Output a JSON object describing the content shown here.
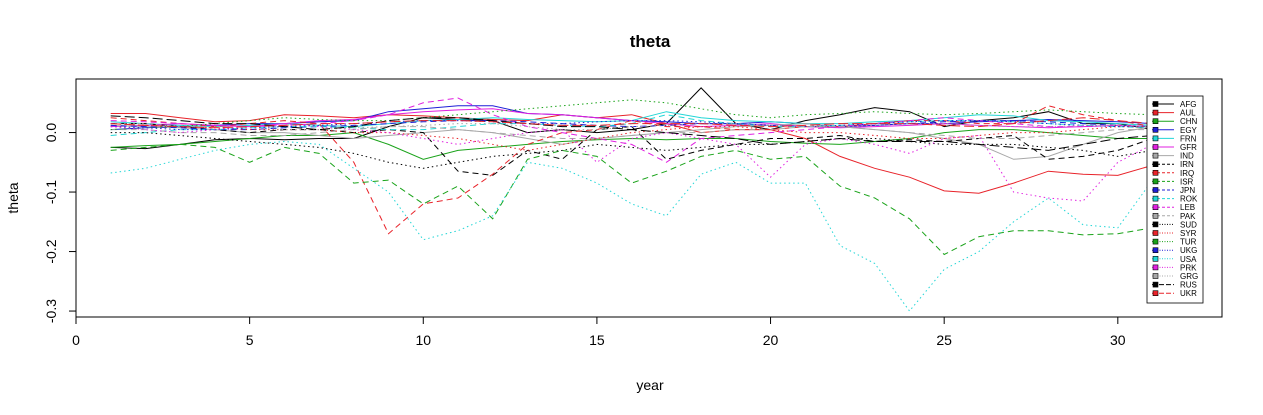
{
  "chart_data": {
    "type": "line",
    "title": "theta",
    "xlabel": "year",
    "ylabel": "theta",
    "xlim": [
      0,
      33
    ],
    "ylim": [
      -0.31,
      0.09
    ],
    "xticks": [
      0,
      5,
      10,
      15,
      20,
      25,
      30
    ],
    "yticks": [
      0.0,
      -0.1,
      -0.2,
      -0.3
    ],
    "ytick_labels": [
      "0.0",
      "-0.1",
      "-0.2",
      "-0.3"
    ],
    "grid": false,
    "legend_position": "right",
    "x": [
      1,
      2,
      3,
      4,
      5,
      6,
      7,
      8,
      9,
      10,
      11,
      12,
      13,
      14,
      15,
      16,
      17,
      18,
      19,
      20,
      21,
      22,
      23,
      24,
      25,
      26,
      27,
      28,
      29,
      30,
      31
    ],
    "series": [
      {
        "name": "AFG",
        "color": "#000000",
        "dash": "solid",
        "values": [
          -0.025,
          -0.027,
          -0.02,
          -0.012,
          -0.01,
          -0.012,
          -0.01,
          -0.01,
          0.01,
          0.025,
          0.022,
          0.02,
          0.0,
          0.005,
          0.0,
          0.005,
          0.015,
          0.075,
          0.015,
          0.005,
          0.02,
          0.03,
          0.042,
          0.035,
          0.01,
          0.02,
          0.025,
          0.035,
          0.015,
          0.015,
          0.005
        ]
      },
      {
        "name": "AUL",
        "color": "#e8232a",
        "dash": "solid",
        "values": [
          0.032,
          0.032,
          0.025,
          0.018,
          0.02,
          0.03,
          0.028,
          0.025,
          0.03,
          0.028,
          0.025,
          0.022,
          0.02,
          0.03,
          0.025,
          0.03,
          0.015,
          0.0,
          0.005,
          0.005,
          -0.01,
          -0.04,
          -0.06,
          -0.075,
          -0.098,
          -0.102,
          -0.085,
          -0.065,
          -0.07,
          -0.072,
          -0.055
        ]
      },
      {
        "name": "CHN",
        "color": "#1aa31a",
        "dash": "solid",
        "values": [
          -0.025,
          -0.022,
          -0.02,
          -0.015,
          -0.01,
          -0.005,
          -0.005,
          0.0,
          -0.02,
          -0.045,
          -0.03,
          -0.025,
          -0.02,
          -0.015,
          -0.012,
          -0.01,
          -0.012,
          -0.01,
          -0.01,
          -0.015,
          -0.018,
          -0.02,
          -0.015,
          -0.01,
          0.0,
          0.005,
          0.005,
          0.0,
          -0.005,
          -0.01,
          -0.01
        ]
      },
      {
        "name": "EGY",
        "color": "#1f1fd6",
        "dash": "solid",
        "values": [
          0.005,
          0.008,
          0.01,
          0.012,
          0.015,
          0.015,
          0.018,
          0.02,
          0.035,
          0.04,
          0.045,
          0.045,
          0.032,
          0.03,
          0.025,
          0.02,
          0.018,
          0.015,
          0.015,
          0.018,
          0.015,
          0.01,
          0.012,
          0.015,
          0.015,
          0.018,
          0.02,
          0.022,
          0.02,
          0.018,
          0.015
        ]
      },
      {
        "name": "FRN",
        "color": "#22d6d6",
        "dash": "solid",
        "values": [
          0.018,
          0.015,
          0.012,
          0.01,
          0.012,
          0.015,
          0.012,
          0.01,
          0.015,
          0.02,
          0.022,
          0.025,
          0.022,
          0.02,
          0.018,
          0.02,
          0.035,
          0.025,
          0.02,
          0.018,
          0.015,
          0.015,
          0.018,
          0.02,
          0.025,
          0.03,
          0.028,
          0.02,
          0.018,
          0.015,
          0.012
        ]
      },
      {
        "name": "GFR",
        "color": "#e020e0",
        "dash": "solid",
        "values": [
          0.01,
          0.012,
          0.015,
          0.012,
          0.01,
          0.015,
          0.02,
          0.022,
          0.03,
          0.035,
          0.038,
          0.04,
          0.032,
          0.03,
          0.025,
          0.02,
          0.015,
          0.01,
          0.012,
          0.015,
          0.01,
          0.008,
          0.01,
          0.012,
          0.015,
          0.012,
          0.01,
          0.008,
          0.01,
          0.012,
          0.01
        ]
      },
      {
        "name": "IND",
        "color": "#a8a8a8",
        "dash": "solid",
        "values": [
          0.012,
          0.01,
          0.008,
          0.005,
          0.0,
          0.0,
          -0.005,
          -0.01,
          -0.005,
          0.0,
          0.005,
          0.0,
          -0.01,
          -0.02,
          -0.01,
          -0.005,
          0.0,
          0.005,
          0.01,
          0.012,
          0.015,
          0.01,
          0.005,
          0.0,
          -0.01,
          -0.02,
          -0.045,
          -0.04,
          -0.02,
          0.0,
          0.01
        ]
      },
      {
        "name": "IRN",
        "color": "#000000",
        "dash": "dashed",
        "values": [
          0.015,
          0.015,
          0.01,
          0.005,
          0.0,
          0.005,
          0.005,
          0.0,
          0.005,
          0.0,
          -0.065,
          -0.072,
          -0.03,
          -0.045,
          0.005,
          0.01,
          -0.045,
          -0.03,
          -0.02,
          -0.01,
          -0.01,
          -0.005,
          -0.015,
          -0.012,
          -0.015,
          -0.01,
          -0.005,
          -0.045,
          -0.04,
          -0.03,
          -0.01
        ]
      },
      {
        "name": "IRQ",
        "color": "#e8232a",
        "dash": "dashed",
        "values": [
          0.025,
          0.02,
          0.015,
          0.01,
          0.015,
          0.02,
          0.015,
          -0.05,
          -0.17,
          -0.12,
          -0.11,
          -0.07,
          -0.02,
          0.0,
          0.005,
          0.02,
          0.01,
          0.01,
          0.005,
          0.005,
          0.01,
          0.01,
          0.015,
          0.02,
          0.02,
          0.015,
          0.015,
          0.045,
          0.03,
          0.02,
          0.01
        ]
      },
      {
        "name": "ISR",
        "color": "#1aa31a",
        "dash": "dashed",
        "values": [
          -0.03,
          -0.025,
          -0.02,
          -0.025,
          -0.05,
          -0.025,
          -0.035,
          -0.085,
          -0.08,
          -0.12,
          -0.09,
          -0.145,
          -0.045,
          -0.03,
          -0.04,
          -0.085,
          -0.065,
          -0.04,
          -0.03,
          -0.045,
          -0.04,
          -0.09,
          -0.11,
          -0.145,
          -0.205,
          -0.175,
          -0.165,
          -0.165,
          -0.172,
          -0.17,
          -0.16
        ]
      },
      {
        "name": "JPN",
        "color": "#1f1fd6",
        "dash": "dashed",
        "values": [
          0.012,
          0.01,
          0.008,
          0.005,
          0.005,
          0.008,
          0.01,
          0.012,
          0.015,
          0.018,
          0.02,
          0.02,
          0.018,
          0.015,
          0.012,
          0.01,
          0.012,
          0.015,
          0.015,
          0.012,
          0.01,
          0.01,
          0.012,
          0.015,
          0.018,
          0.02,
          0.02,
          0.018,
          0.015,
          0.012,
          0.01
        ]
      },
      {
        "name": "ROK",
        "color": "#22d6d6",
        "dash": "dashed",
        "values": [
          -0.005,
          0.0,
          0.005,
          0.005,
          0.008,
          0.01,
          0.01,
          0.008,
          0.005,
          0.005,
          0.01,
          0.015,
          0.015,
          0.012,
          0.01,
          0.015,
          0.03,
          0.02,
          0.015,
          0.01,
          0.01,
          0.012,
          0.015,
          0.018,
          0.02,
          0.02,
          0.018,
          0.015,
          0.012,
          0.01,
          0.008
        ]
      },
      {
        "name": "LEB",
        "color": "#e020e0",
        "dash": "dashed",
        "values": [
          0.02,
          0.018,
          0.015,
          0.012,
          0.01,
          0.012,
          0.015,
          0.02,
          0.03,
          0.05,
          0.058,
          0.03,
          0.01,
          0.0,
          -0.01,
          -0.02,
          -0.05,
          -0.01,
          -0.005,
          0.0,
          0.005,
          0.01,
          0.015,
          0.02,
          0.025,
          0.02,
          0.015,
          0.01,
          0.01,
          0.012,
          0.01
        ]
      },
      {
        "name": "PAK",
        "color": "#a8a8a8",
        "dash": "dashed",
        "values": [
          0.005,
          0.005,
          0.0,
          0.0,
          -0.005,
          -0.005,
          0.0,
          0.005,
          0.01,
          0.01,
          0.005,
          0.0,
          -0.005,
          -0.01,
          -0.01,
          -0.005,
          0.0,
          0.0,
          0.005,
          0.005,
          0.01,
          0.01,
          0.005,
          0.0,
          -0.005,
          -0.01,
          -0.01,
          -0.005,
          0.0,
          0.005,
          0.005
        ]
      },
      {
        "name": "SUD",
        "color": "#000000",
        "dash": "dotted",
        "values": [
          0.0,
          0.0,
          -0.005,
          -0.01,
          -0.015,
          -0.02,
          -0.025,
          -0.035,
          -0.05,
          -0.06,
          -0.05,
          -0.04,
          -0.035,
          -0.03,
          -0.02,
          -0.025,
          -0.03,
          -0.025,
          -0.02,
          -0.02,
          -0.015,
          -0.01,
          -0.01,
          -0.015,
          -0.02,
          -0.02,
          -0.02,
          -0.025,
          -0.03,
          -0.04,
          -0.03
        ]
      },
      {
        "name": "SYR",
        "color": "#e8232a",
        "dash": "dotted",
        "values": [
          0.015,
          0.012,
          0.01,
          0.008,
          0.005,
          0.005,
          0.005,
          0.0,
          0.0,
          -0.005,
          -0.01,
          -0.02,
          -0.03,
          -0.02,
          -0.01,
          0.0,
          0.005,
          0.01,
          0.01,
          0.005,
          0.0,
          0.0,
          -0.005,
          -0.01,
          -0.01,
          -0.005,
          0.0,
          0.0,
          0.005,
          0.01,
          0.01
        ]
      },
      {
        "name": "TUR",
        "color": "#1aa31a",
        "dash": "dotted",
        "values": [
          0.005,
          0.008,
          0.01,
          0.015,
          0.02,
          0.025,
          0.022,
          0.02,
          0.02,
          0.025,
          0.03,
          0.035,
          0.04,
          0.045,
          0.05,
          0.055,
          0.05,
          0.04,
          0.03,
          0.025,
          0.03,
          0.032,
          0.035,
          0.032,
          0.03,
          0.032,
          0.035,
          0.038,
          0.035,
          0.032,
          0.03
        ]
      },
      {
        "name": "UKG",
        "color": "#1f1fd6",
        "dash": "dotted",
        "values": [
          0.01,
          0.008,
          0.005,
          0.005,
          0.008,
          0.01,
          0.012,
          0.015,
          0.018,
          0.02,
          0.02,
          0.018,
          0.015,
          0.015,
          0.018,
          0.02,
          0.02,
          0.018,
          0.015,
          0.012,
          0.01,
          0.012,
          0.015,
          0.018,
          0.02,
          0.02,
          0.018,
          0.015,
          0.012,
          0.01,
          0.01
        ]
      },
      {
        "name": "USA",
        "color": "#22d6d6",
        "dash": "dotted",
        "values": [
          -0.068,
          -0.06,
          -0.045,
          -0.03,
          -0.02,
          -0.015,
          -0.02,
          -0.06,
          -0.1,
          -0.18,
          -0.165,
          -0.14,
          -0.05,
          -0.06,
          -0.085,
          -0.12,
          -0.14,
          -0.07,
          -0.05,
          -0.085,
          -0.085,
          -0.19,
          -0.22,
          -0.3,
          -0.23,
          -0.2,
          -0.15,
          -0.11,
          -0.155,
          -0.16,
          -0.08
        ]
      },
      {
        "name": "PRK",
        "color": "#e020e0",
        "dash": "dotted",
        "values": [
          0.01,
          0.005,
          0.0,
          0.005,
          0.01,
          0.015,
          0.01,
          0.005,
          0.0,
          -0.01,
          -0.02,
          -0.01,
          0.0,
          0.005,
          -0.05,
          -0.01,
          0.0,
          -0.01,
          -0.02,
          -0.075,
          -0.02,
          -0.01,
          -0.02,
          -0.035,
          -0.01,
          -0.005,
          -0.1,
          -0.11,
          -0.115,
          -0.05,
          -0.02
        ]
      },
      {
        "name": "GRG",
        "color": "#a8a8a8",
        "dash": "dotted",
        "values": [
          0.015,
          0.015,
          0.01,
          0.01,
          0.008,
          0.005,
          0.005,
          0.008,
          0.01,
          0.012,
          0.015,
          0.015,
          0.01,
          0.005,
          0.005,
          0.01,
          0.012,
          0.015,
          0.015,
          0.012,
          0.01,
          0.01,
          0.012,
          0.015,
          0.015,
          0.012,
          0.01,
          0.01,
          0.012,
          0.012,
          0.01
        ]
      },
      {
        "name": "RUS",
        "color": "#000000",
        "dash": "longdash",
        "values": [
          0.028,
          0.025,
          0.02,
          0.015,
          0.015,
          0.01,
          0.005,
          0.01,
          0.02,
          0.025,
          0.025,
          0.02,
          0.015,
          0.01,
          0.01,
          0.005,
          0.0,
          -0.005,
          -0.01,
          -0.02,
          -0.015,
          -0.01,
          -0.015,
          -0.015,
          -0.015,
          -0.02,
          -0.025,
          -0.03,
          -0.02,
          -0.01,
          -0.005
        ]
      },
      {
        "name": "UKR",
        "color": "#e8232a",
        "dash": "longdash",
        "values": [
          0.015,
          0.012,
          0.01,
          0.008,
          0.01,
          0.012,
          0.015,
          0.015,
          0.018,
          0.02,
          0.02,
          0.018,
          0.015,
          0.012,
          0.012,
          0.015,
          0.015,
          0.015,
          0.012,
          0.01,
          0.012,
          0.015,
          0.015,
          0.015,
          0.012,
          0.01,
          0.015,
          0.02,
          0.025,
          0.02,
          0.015
        ]
      }
    ]
  }
}
